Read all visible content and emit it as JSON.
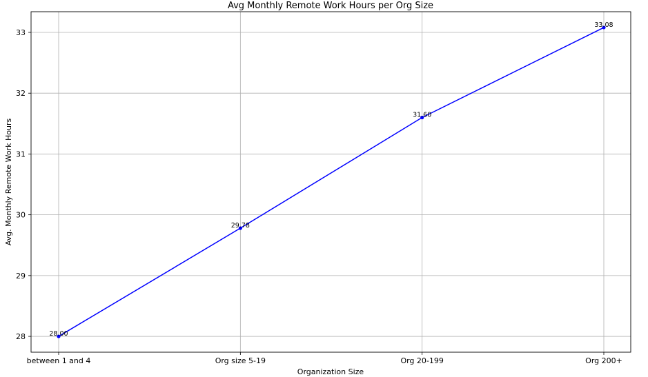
{
  "chart_data": {
    "type": "line",
    "title": "Avg Monthly Remote Work Hours per Org Size",
    "xlabel": "Organization Size",
    "ylabel": "Avg. Monthly Remote Work Hours",
    "categories": [
      "between 1 and 4",
      "Org size 5-19",
      "Org 20-199",
      "Org 200+"
    ],
    "values": [
      28.0,
      29.78,
      31.6,
      33.08
    ],
    "data_labels": [
      "28.00",
      "29.78",
      "31.60",
      "33.08"
    ],
    "ylim": [
      27.74,
      33.34
    ],
    "yticks": [
      28,
      29,
      30,
      31,
      32,
      33
    ],
    "grid": true,
    "line_color": "#0000ff",
    "marker_color": "#0000ff",
    "marker": "circle"
  }
}
